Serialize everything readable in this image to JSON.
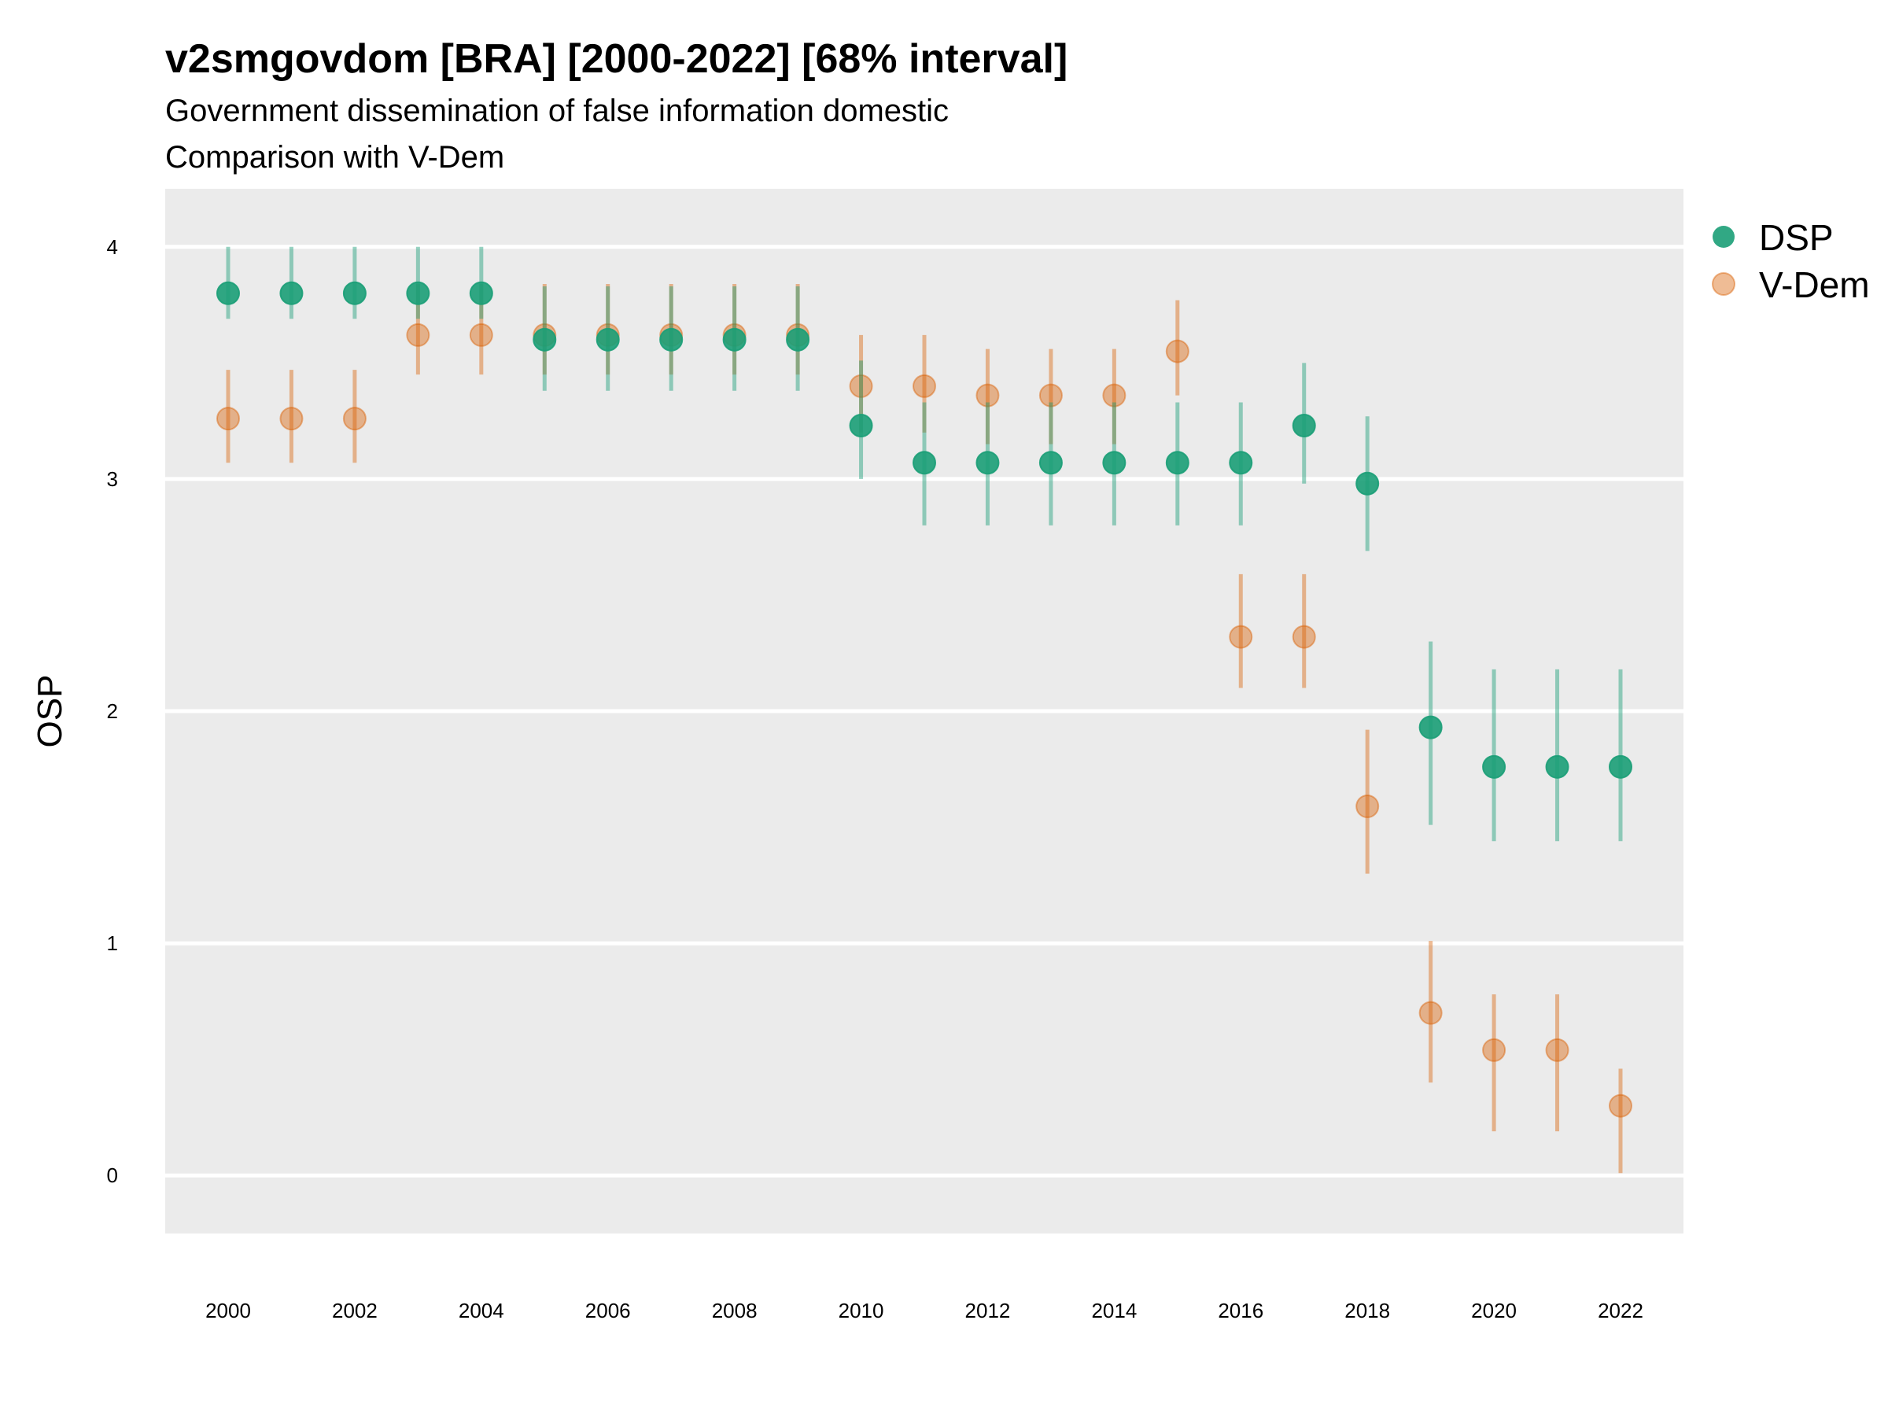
{
  "chart_data": {
    "type": "scatter",
    "title": "v2smgovdom [BRA] [2000-2022] [68% interval]",
    "subtitle_lines": [
      "Government dissemination of false information domestic",
      "Comparison with V-Dem"
    ],
    "ylabel": "OSP",
    "xlabel": "",
    "ylim": [
      -0.25,
      4.25
    ],
    "yticks": [
      0,
      1,
      2,
      3,
      4
    ],
    "xticks": [
      2000,
      2002,
      2004,
      2006,
      2008,
      2010,
      2012,
      2014,
      2016,
      2018,
      2020,
      2022
    ],
    "grid": true,
    "legend_position": "right",
    "series": [
      {
        "name": "DSP",
        "color": "#1b9e77",
        "x": [
          2000,
          2001,
          2002,
          2003,
          2004,
          2005,
          2006,
          2007,
          2008,
          2009,
          2010,
          2011,
          2012,
          2013,
          2014,
          2015,
          2016,
          2017,
          2018,
          2019,
          2020,
          2021,
          2022
        ],
        "y": [
          3.8,
          3.8,
          3.8,
          3.8,
          3.8,
          3.6,
          3.6,
          3.6,
          3.6,
          3.6,
          3.23,
          3.07,
          3.07,
          3.07,
          3.07,
          3.07,
          3.07,
          3.23,
          2.98,
          1.93,
          1.76,
          1.76,
          1.76
        ],
        "lower": [
          3.69,
          3.69,
          3.69,
          3.69,
          3.69,
          3.38,
          3.38,
          3.38,
          3.38,
          3.38,
          3.0,
          2.8,
          2.8,
          2.8,
          2.8,
          2.8,
          2.8,
          2.98,
          2.69,
          1.51,
          1.44,
          1.44,
          1.44
        ],
        "upper": [
          4.0,
          4.0,
          4.0,
          4.0,
          4.0,
          3.83,
          3.83,
          3.83,
          3.83,
          3.83,
          3.51,
          3.33,
          3.33,
          3.33,
          3.33,
          3.33,
          3.33,
          3.5,
          3.27,
          2.3,
          2.18,
          2.18,
          2.18
        ]
      },
      {
        "name": "V-Dem",
        "color": "#d95f02",
        "x": [
          2000,
          2001,
          2002,
          2003,
          2004,
          2005,
          2006,
          2007,
          2008,
          2009,
          2010,
          2011,
          2012,
          2013,
          2014,
          2015,
          2016,
          2017,
          2018,
          2019,
          2020,
          2021,
          2022
        ],
        "y": [
          3.26,
          3.26,
          3.26,
          3.62,
          3.62,
          3.62,
          3.62,
          3.62,
          3.62,
          3.62,
          3.4,
          3.4,
          3.36,
          3.36,
          3.36,
          3.55,
          2.32,
          2.32,
          1.59,
          0.7,
          0.54,
          0.54,
          0.3
        ],
        "lower": [
          3.07,
          3.07,
          3.07,
          3.45,
          3.45,
          3.45,
          3.45,
          3.45,
          3.45,
          3.45,
          3.2,
          3.2,
          3.15,
          3.15,
          3.15,
          3.36,
          2.1,
          2.1,
          1.3,
          0.4,
          0.19,
          0.19,
          0.01
        ],
        "upper": [
          3.47,
          3.47,
          3.47,
          3.84,
          3.84,
          3.84,
          3.84,
          3.84,
          3.84,
          3.84,
          3.62,
          3.62,
          3.56,
          3.56,
          3.56,
          3.77,
          2.59,
          2.59,
          1.92,
          1.01,
          0.78,
          0.78,
          0.46
        ]
      }
    ]
  }
}
